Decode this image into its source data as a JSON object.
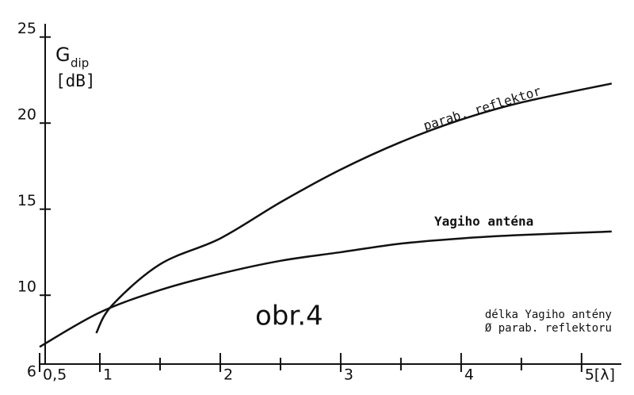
{
  "chart_data": {
    "type": "line",
    "y_label": "G",
    "y_label_sub": "dip",
    "y_unit": "[dB]",
    "annotation": "obr.4",
    "x_note": [
      "délka Yagiho antény",
      "Ø parab. reflektoru"
    ],
    "xlim": [
      0.5,
      5.33
    ],
    "ylim": [
      6,
      26
    ],
    "xticks": [
      {
        "value": 0.5,
        "label": "0,5"
      },
      1,
      2,
      3,
      4,
      {
        "value": 5,
        "label": "5[λ]"
      }
    ],
    "xminor_ticks": [
      1.5,
      2.5,
      3.5,
      4.5
    ],
    "yticks": [
      6,
      10,
      15,
      20,
      25
    ],
    "series": [
      {
        "name": "parab. reflektor",
        "color": "#111111",
        "x": [
          0.97,
          1.1,
          1.5,
          2,
          2.5,
          3,
          3.5,
          4,
          4.5,
          5.25
        ],
        "values": [
          7.8,
          9.4,
          11.8,
          13.3,
          15.4,
          17.3,
          18.9,
          20.2,
          21.2,
          22.3
        ]
      },
      {
        "name": "Yagiho anténa",
        "color": "#111111",
        "x": [
          0.5,
          1,
          1.5,
          2,
          2.5,
          3,
          3.5,
          4,
          4.5,
          5.25
        ],
        "values": [
          7.0,
          9.0,
          10.3,
          11.25,
          12.0,
          12.5,
          13.0,
          13.3,
          13.5,
          13.7
        ]
      }
    ]
  }
}
